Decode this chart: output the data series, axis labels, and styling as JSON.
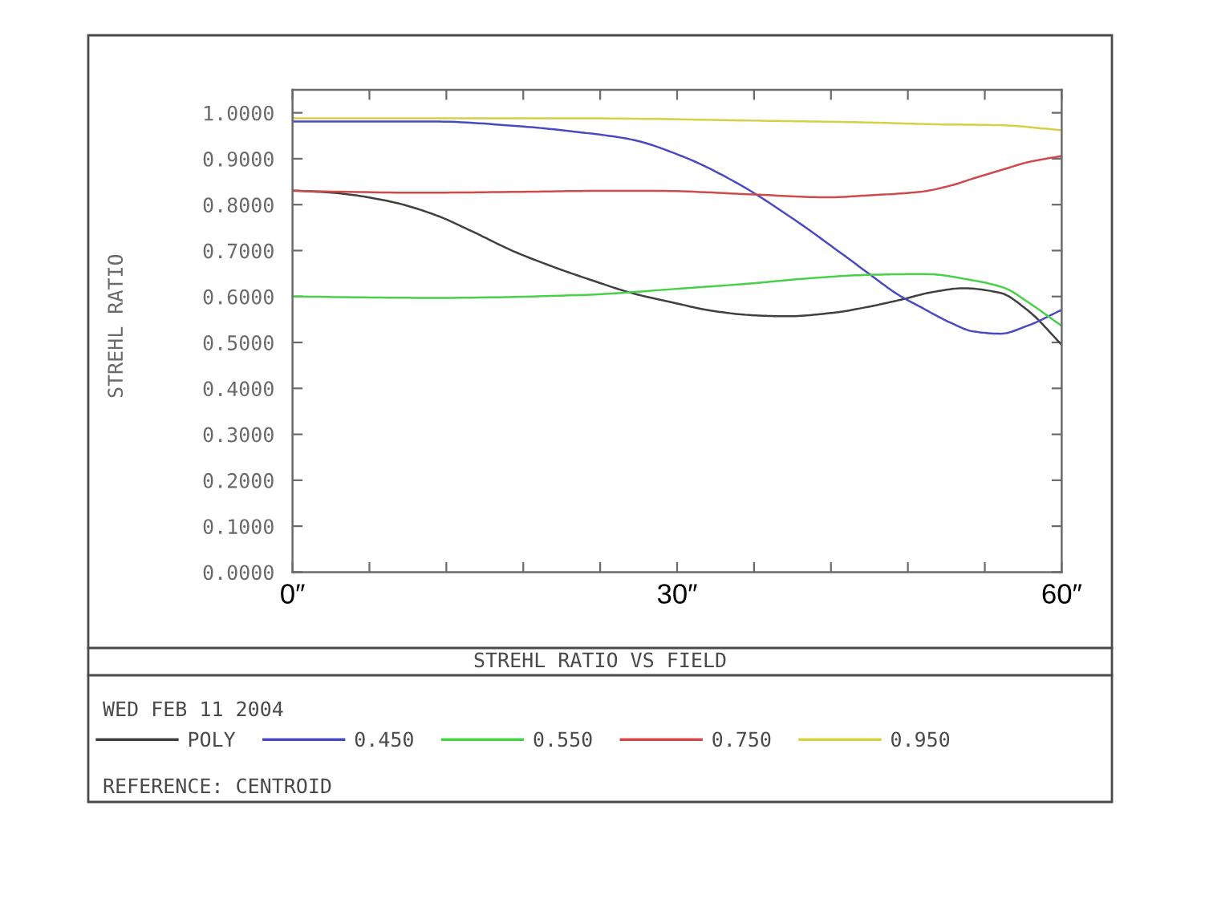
{
  "chart_data": {
    "type": "line",
    "title": "STREHL RATIO VS FIELD",
    "ylabel": "STREHL RATIO",
    "annotations": [
      "WED FEB 11 2004",
      "REFERENCE: CENTROID"
    ],
    "xlim": [
      0,
      60
    ],
    "ylim": [
      0,
      1.05
    ],
    "xticks": [
      {
        "value": 0,
        "label": "0″"
      },
      {
        "value": 6,
        "label": null
      },
      {
        "value": 12,
        "label": null
      },
      {
        "value": 18,
        "label": null
      },
      {
        "value": 24,
        "label": null
      },
      {
        "value": 30,
        "label": "30″"
      },
      {
        "value": 36,
        "label": null
      },
      {
        "value": 42,
        "label": null
      },
      {
        "value": 48,
        "label": null
      },
      {
        "value": 54,
        "label": null
      },
      {
        "value": 60,
        "label": "60″"
      }
    ],
    "yticks": [
      {
        "value": 0,
        "label": "0.0000"
      },
      {
        "value": 0.1,
        "label": "0.1000"
      },
      {
        "value": 0.2,
        "label": "0.2000"
      },
      {
        "value": 0.3,
        "label": "0.3000"
      },
      {
        "value": 0.4,
        "label": "0.4000"
      },
      {
        "value": 0.5,
        "label": "0.5000"
      },
      {
        "value": 0.6,
        "label": "0.6000"
      },
      {
        "value": 0.7,
        "label": "0.7000"
      },
      {
        "value": 0.8,
        "label": "0.8000"
      },
      {
        "value": 0.9,
        "label": "0.9000"
      },
      {
        "value": 1.0,
        "label": "1.0000"
      }
    ],
    "legend": "bottom",
    "series": [
      {
        "name": "POLY",
        "color": "#404040",
        "x": [
          0,
          3.5,
          7.6,
          11,
          14,
          17.2,
          20.4,
          23.5,
          26.4,
          29.8,
          32.7,
          36,
          38.5,
          42.3,
          44.8,
          47.3,
          50,
          52.3,
          55.2,
          57.3,
          60
        ],
        "values": [
          0.831,
          0.825,
          0.807,
          0.779,
          0.742,
          0.699,
          0.664,
          0.634,
          0.608,
          0.586,
          0.569,
          0.559,
          0.557,
          0.565,
          0.577,
          0.592,
          0.61,
          0.618,
          0.608,
          0.571,
          0.495
        ]
      },
      {
        "name": "0.450",
        "color": "#4a4ac0",
        "x": [
          0,
          11,
          18,
          22.3,
          26.4,
          30.6,
          34.8,
          38.9,
          43.1,
          44.8,
          47.3,
          49,
          51.4,
          53.1,
          55.2,
          57.3,
          60
        ],
        "values": [
          0.981,
          0.981,
          0.97,
          0.958,
          0.942,
          0.903,
          0.845,
          0.772,
          0.688,
          0.653,
          0.603,
          0.577,
          0.542,
          0.524,
          0.519,
          0.536,
          0.571
        ]
      },
      {
        "name": "0.550",
        "color": "#48d048",
        "x": [
          0,
          11,
          22.3,
          30.6,
          36,
          40,
          44.8,
          49.3,
          53.1,
          55.6,
          57.3,
          60
        ],
        "values": [
          0.6,
          0.597,
          0.603,
          0.618,
          0.629,
          0.639,
          0.647,
          0.649,
          0.635,
          0.618,
          0.589,
          0.536
        ]
      },
      {
        "name": "0.750",
        "color": "#d04a4a",
        "x": [
          0,
          10,
          18,
          24,
          28.5,
          36,
          41.8,
          44.8,
          49,
          51.4,
          53.1,
          55.6,
          57.3,
          60
        ],
        "values": [
          0.83,
          0.826,
          0.828,
          0.83,
          0.83,
          0.822,
          0.816,
          0.82,
          0.828,
          0.842,
          0.857,
          0.878,
          0.892,
          0.906
        ]
      },
      {
        "name": "0.950",
        "color": "#d4d048",
        "x": [
          0,
          22.3,
          36,
          44.8,
          50,
          55.2,
          60
        ],
        "values": [
          0.988,
          0.988,
          0.983,
          0.979,
          0.975,
          0.973,
          0.962
        ]
      }
    ]
  }
}
